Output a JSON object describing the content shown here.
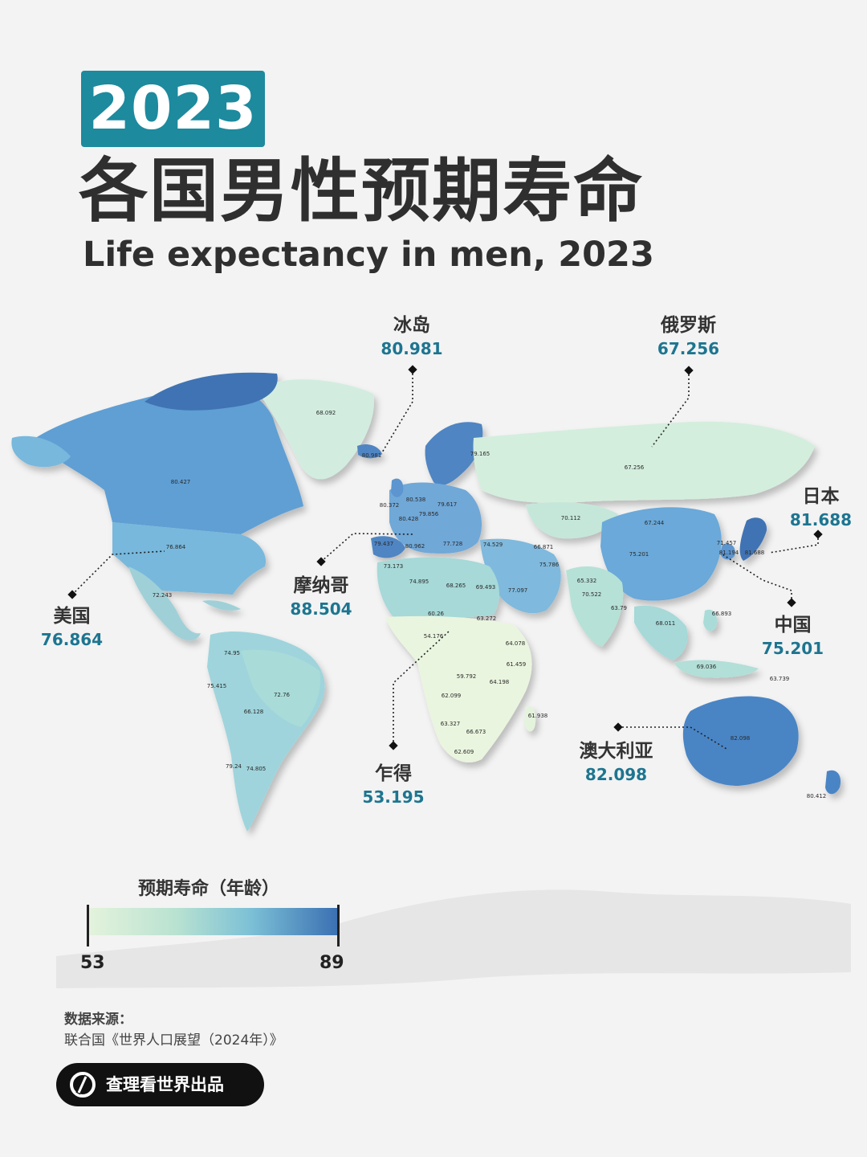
{
  "header": {
    "year": "2023",
    "title_cn": "各国男性预期寿命",
    "title_en": "Life expectancy in men, 2023"
  },
  "colors": {
    "accent": "#1d8a9e",
    "value_text": "#1d7590",
    "scale_low": "#e4f3dc",
    "scale_mid": "#7cc0d6",
    "scale_high": "#3a6fb2"
  },
  "callouts": [
    {
      "id": "iceland",
      "name": "冰岛",
      "value": "80.981"
    },
    {
      "id": "russia",
      "name": "俄罗斯",
      "value": "67.256"
    },
    {
      "id": "japan",
      "name": "日本",
      "value": "81.688"
    },
    {
      "id": "usa",
      "name": "美国",
      "value": "76.864"
    },
    {
      "id": "monaco",
      "name": "摩纳哥",
      "value": "88.504"
    },
    {
      "id": "china",
      "name": "中国",
      "value": "75.201"
    },
    {
      "id": "chad",
      "name": "乍得",
      "value": "53.195"
    },
    {
      "id": "australia",
      "name": "澳大利亚",
      "value": "82.098"
    }
  ],
  "map_labels": [
    {
      "label": "68.092",
      "value": 68.092
    },
    {
      "label": "80.981",
      "value": 80.981
    },
    {
      "label": "79.165",
      "value": 79.165
    },
    {
      "label": "67.256",
      "value": 67.256
    },
    {
      "label": "80.427",
      "value": 80.427
    },
    {
      "label": "80.538",
      "value": 80.538
    },
    {
      "label": "80.372",
      "value": 80.372
    },
    {
      "label": "79.617",
      "value": 79.617
    },
    {
      "label": "79.856",
      "value": 79.856
    },
    {
      "label": "80.428",
      "value": 80.428
    },
    {
      "label": "70.112",
      "value": 70.112
    },
    {
      "label": "67.244",
      "value": 67.244
    },
    {
      "label": "71.457",
      "value": 71.457
    },
    {
      "label": "81.194",
      "value": 81.194
    },
    {
      "label": "81.688",
      "value": 81.688
    },
    {
      "label": "76.864",
      "value": 76.864
    },
    {
      "label": "79.437",
      "value": 79.437
    },
    {
      "label": "80.962",
      "value": 80.962
    },
    {
      "label": "77.728",
      "value": 77.728
    },
    {
      "label": "74.529",
      "value": 74.529
    },
    {
      "label": "66.871",
      "value": 66.871
    },
    {
      "label": "75.201",
      "value": 75.201
    },
    {
      "label": "73.173",
      "value": 73.173
    },
    {
      "label": "74.895",
      "value": 74.895
    },
    {
      "label": "75.786",
      "value": 75.786
    },
    {
      "label": "68.265",
      "value": 68.265
    },
    {
      "label": "69.493",
      "value": 69.493
    },
    {
      "label": "77.097",
      "value": 77.097
    },
    {
      "label": "65.332",
      "value": 65.332
    },
    {
      "label": "72.243",
      "value": 72.243
    },
    {
      "label": "70.522",
      "value": 70.522
    },
    {
      "label": "63.79",
      "value": 63.79
    },
    {
      "label": "60.26",
      "value": 60.26
    },
    {
      "label": "63.272",
      "value": 63.272
    },
    {
      "label": "66.893",
      "value": 66.893
    },
    {
      "label": "68.011",
      "value": 68.011
    },
    {
      "label": "54.176",
      "value": 54.176
    },
    {
      "label": "64.078",
      "value": 64.078
    },
    {
      "label": "74.95",
      "value": 74.95
    },
    {
      "label": "61.459",
      "value": 61.459
    },
    {
      "label": "69.036",
      "value": 69.036
    },
    {
      "label": "59.792",
      "value": 59.792
    },
    {
      "label": "63.739",
      "value": 63.739
    },
    {
      "label": "75.415",
      "value": 75.415
    },
    {
      "label": "64.198",
      "value": 64.198
    },
    {
      "label": "72.76",
      "value": 72.76
    },
    {
      "label": "66.128",
      "value": 66.128
    },
    {
      "label": "62.099",
      "value": 62.099
    },
    {
      "label": "61.938",
      "value": 61.938
    },
    {
      "label": "63.327",
      "value": 63.327
    },
    {
      "label": "82.098",
      "value": 82.098
    },
    {
      "label": "66.673",
      "value": 66.673
    },
    {
      "label": "62.609",
      "value": 62.609
    },
    {
      "label": "79.24",
      "value": 79.24
    },
    {
      "label": "74.805",
      "value": 74.805
    },
    {
      "label": "80.412",
      "value": 80.412
    }
  ],
  "legend": {
    "title": "预期寿命（年龄）",
    "min_label": "53",
    "max_label": "89",
    "min": 53,
    "max": 89
  },
  "source": {
    "label": "数据来源：",
    "text": "联合国《世界人口展望（2024年）》"
  },
  "brand": {
    "text": "查理看世界出品"
  }
}
